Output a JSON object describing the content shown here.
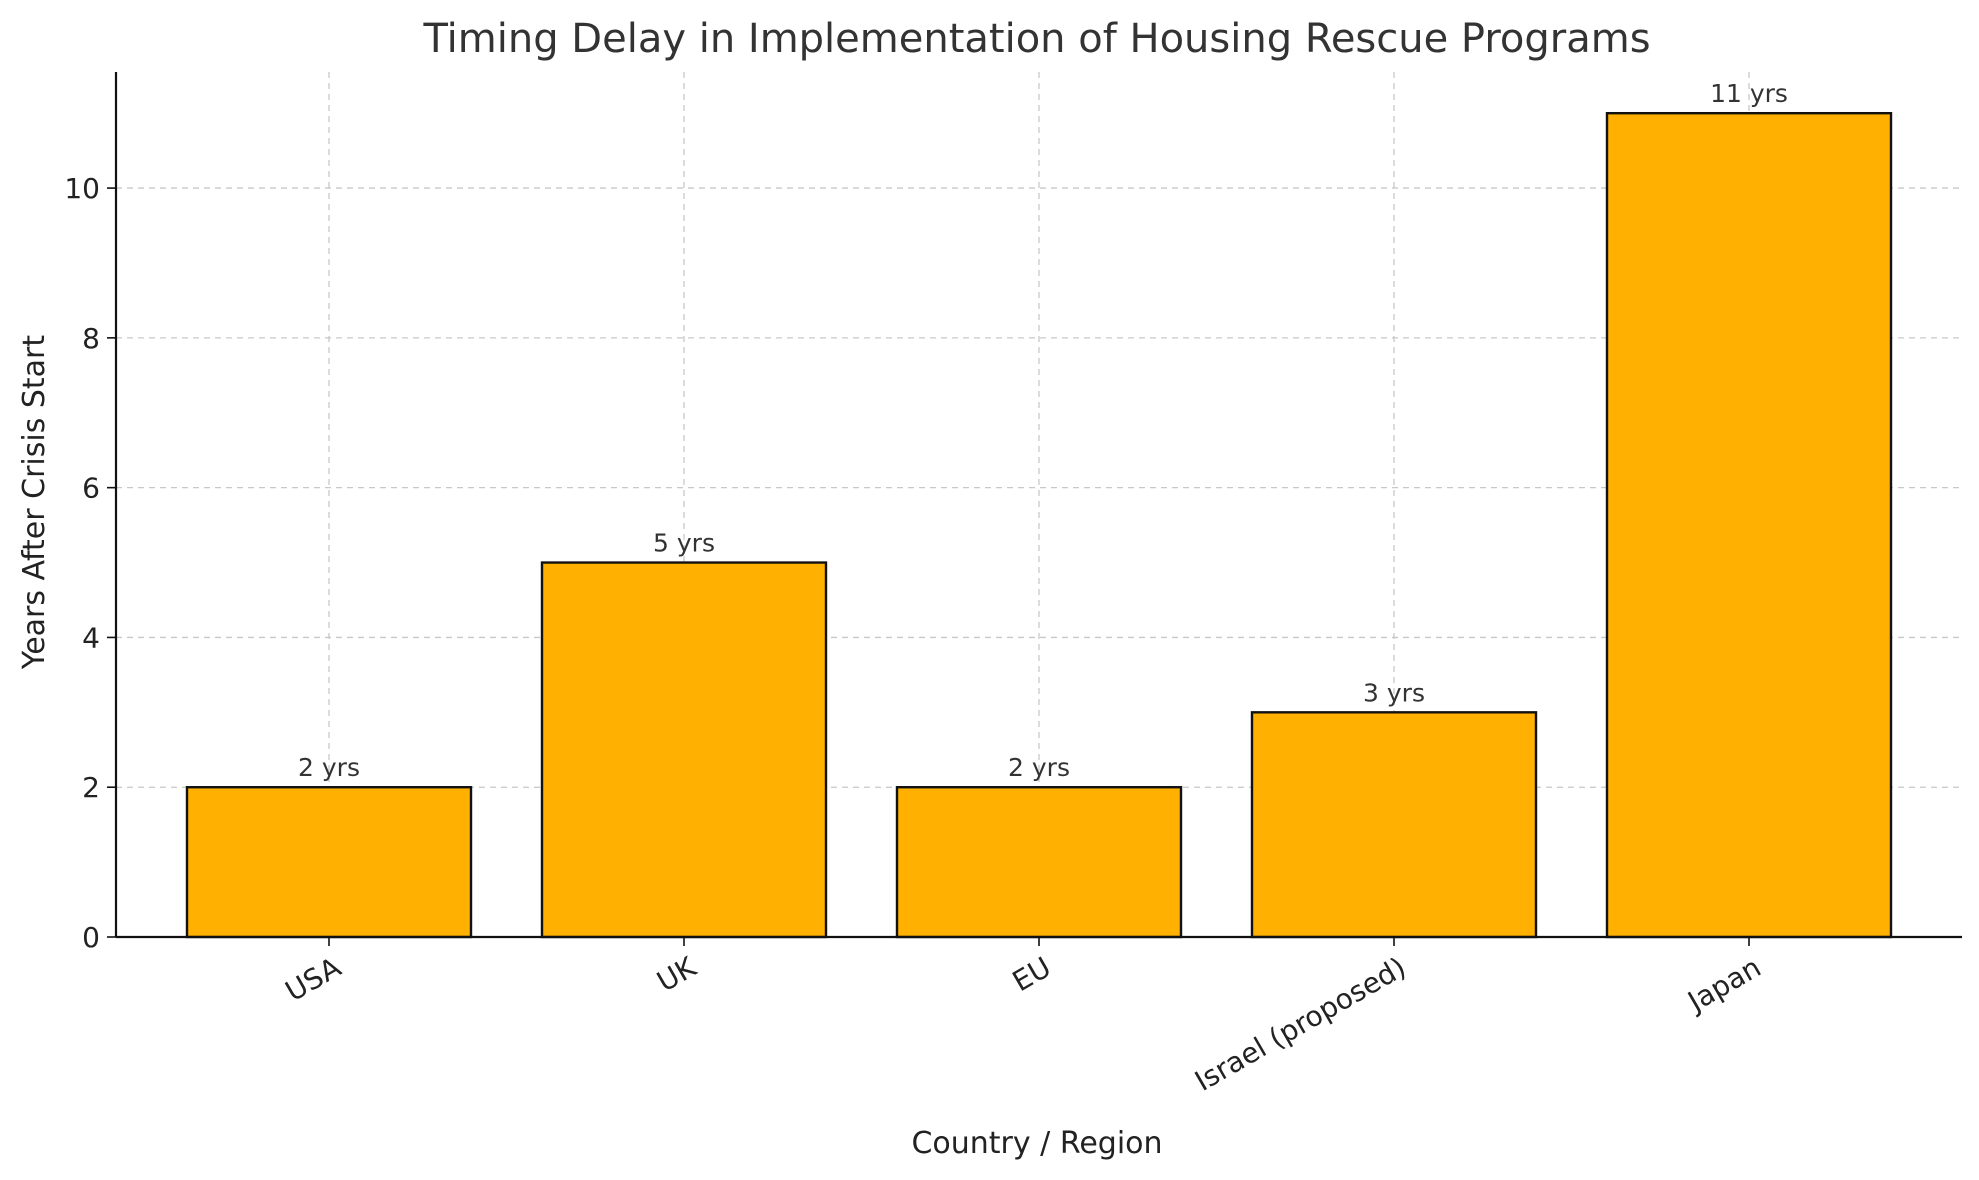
{
  "chart_data": {
    "type": "bar",
    "title": "Timing Delay in Implementation of Housing Rescue Programs",
    "xlabel": "Country / Region",
    "ylabel": "Years After Crisis Start",
    "categories": [
      "USA",
      "UK",
      "EU",
      "Israel (proposed)",
      "Japan"
    ],
    "values": [
      2,
      5,
      2,
      3,
      11
    ],
    "data_labels": [
      "2 yrs",
      "5 yrs",
      "2 yrs",
      "3 yrs",
      "11 yrs"
    ],
    "ylim": [
      0,
      11.55
    ],
    "yticks": [
      0,
      2,
      4,
      6,
      8,
      10
    ],
    "grid": true,
    "bar_color": "#FFB000",
    "edge_color": "#111111",
    "x_tick_rotation_deg": 30
  }
}
